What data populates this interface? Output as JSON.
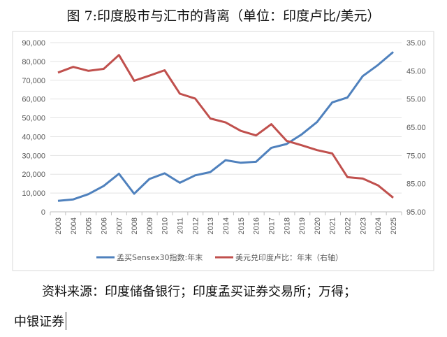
{
  "title": "图 7:印度股市与汇市的背离（单位：印度卢比/美元）",
  "source_line1": "资料来源：印度储备银行；印度孟买证券交易所；万得；",
  "source_line2": "中银证券",
  "chart_data": {
    "type": "line",
    "x": [
      "2003",
      "2004",
      "2005",
      "2006",
      "2007",
      "2008",
      "2009",
      "2010",
      "2011",
      "2012",
      "2013",
      "2014",
      "2015",
      "2016",
      "2017",
      "2018",
      "2019",
      "2020",
      "2021",
      "2022",
      "2023",
      "2024",
      "2025"
    ],
    "series": [
      {
        "name": "孟买Sensex30指数:年末",
        "axis": "left",
        "color": "#4f81bd",
        "values": [
          5839,
          6603,
          9398,
          13787,
          20287,
          9647,
          17465,
          20509,
          15455,
          19427,
          21171,
          27499,
          26118,
          26626,
          34057,
          36068,
          41253,
          47751,
          58254,
          60841,
          72240,
          78139,
          85000
        ]
      },
      {
        "name": "美元兑印度卢比：年末（右轴）",
        "axis": "right",
        "color": "#c0504d",
        "values": [
          45.6,
          43.6,
          45.0,
          44.3,
          39.4,
          48.5,
          46.7,
          44.8,
          53.1,
          54.8,
          61.9,
          63.3,
          66.3,
          67.9,
          63.9,
          69.8,
          71.4,
          73.1,
          74.3,
          82.7,
          83.2,
          85.6,
          90.0
        ]
      }
    ],
    "left_axis": {
      "range": [
        0,
        90000
      ],
      "ticks": [
        "0",
        "10,000",
        "20,000",
        "30,000",
        "40,000",
        "50,000",
        "60,000",
        "70,000",
        "80,000",
        "90,000"
      ]
    },
    "right_axis": {
      "range": [
        35,
        95
      ],
      "inverted": true,
      "ticks": [
        "35.00",
        "45.00",
        "55.00",
        "65.00",
        "75.00",
        "85.00",
        "95.00"
      ]
    },
    "grid": true,
    "legend": "bottom"
  }
}
